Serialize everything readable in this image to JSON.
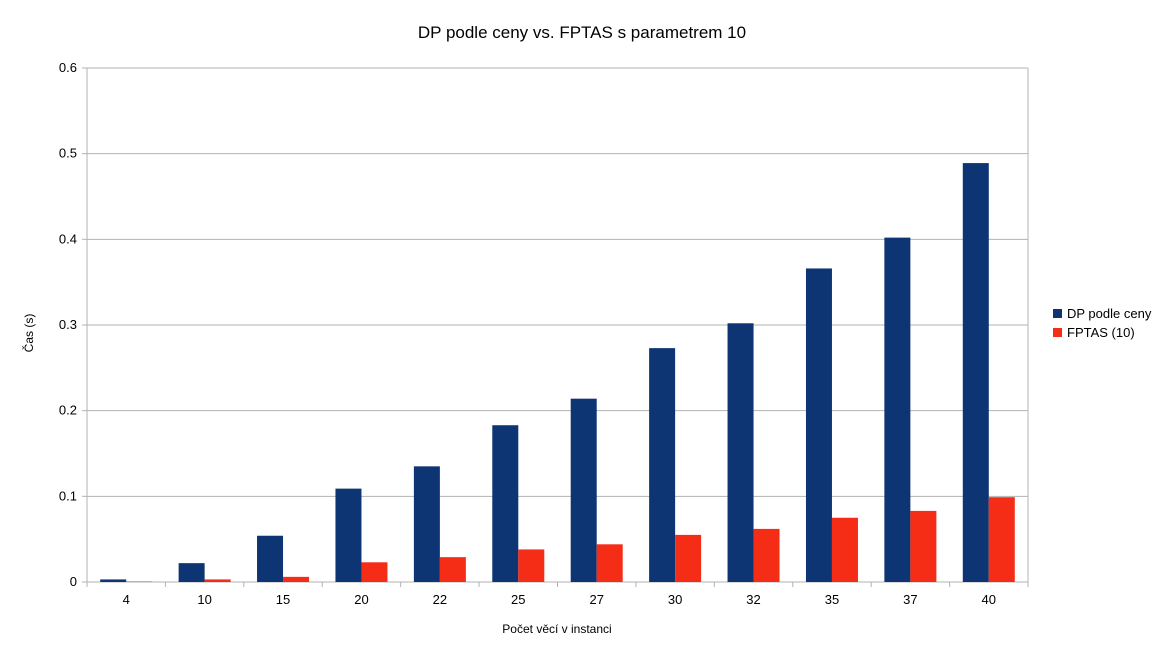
{
  "chart_data": {
    "type": "bar",
    "title": "DP podle ceny vs. FPTAS s parametrem 10",
    "xlabel": "Počet věcí v instanci",
    "ylabel": "Čas (s)",
    "ylim": [
      0,
      0.6
    ],
    "yticks": [
      "0",
      "0.1",
      "0.2",
      "0.3",
      "0.4",
      "0.5",
      "0.6"
    ],
    "grid": true,
    "legend_position": "right",
    "categories": [
      "4",
      "10",
      "15",
      "20",
      "22",
      "25",
      "27",
      "30",
      "32",
      "35",
      "37",
      "40"
    ],
    "series": [
      {
        "name": "DP podle ceny",
        "color": "#0d3473",
        "values": [
          0.003,
          0.022,
          0.054,
          0.109,
          0.135,
          0.183,
          0.214,
          0.273,
          0.302,
          0.366,
          0.402,
          0.489
        ]
      },
      {
        "name": "FPTAS (10)",
        "color": "#f52c16",
        "values": [
          0.0005,
          0.003,
          0.006,
          0.023,
          0.029,
          0.038,
          0.044,
          0.055,
          0.062,
          0.075,
          0.083,
          0.099
        ]
      }
    ]
  }
}
